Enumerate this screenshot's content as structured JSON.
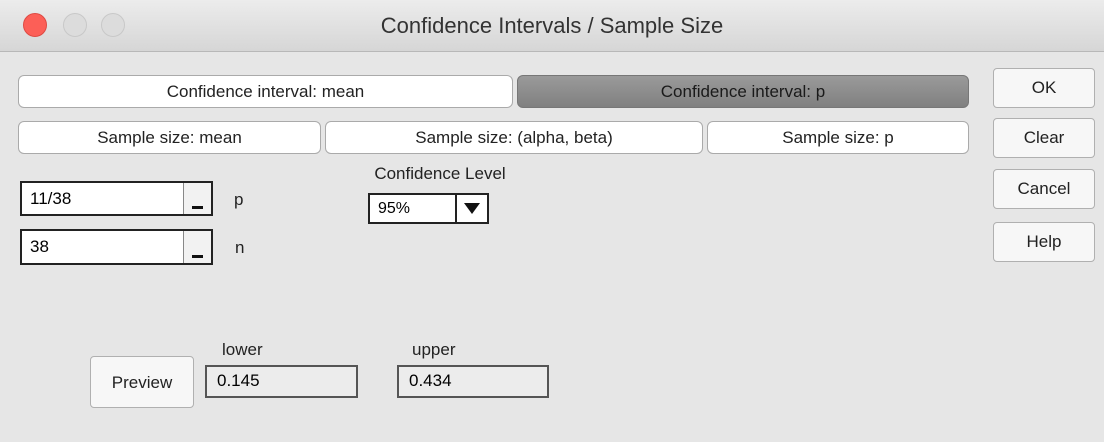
{
  "window": {
    "title": "Confidence Intervals / Sample Size"
  },
  "tabs": {
    "row1": [
      "Confidence interval: mean",
      "Confidence interval: p"
    ],
    "row2": [
      "Sample size: mean",
      "Sample size: (alpha, beta)",
      "Sample size: p"
    ],
    "selected": "Confidence interval: p"
  },
  "buttons": [
    "OK",
    "Clear",
    "Cancel",
    "Help"
  ],
  "inputs": [
    {
      "value": "11/38",
      "label": "p"
    },
    {
      "value": "38",
      "label": "n"
    }
  ],
  "confidence_level": {
    "label": "Confidence Level",
    "value": "95%"
  },
  "preview": "Preview",
  "results": [
    {
      "label": "lower",
      "value": "0.145"
    },
    {
      "label": "upper",
      "value": "0.434"
    }
  ]
}
